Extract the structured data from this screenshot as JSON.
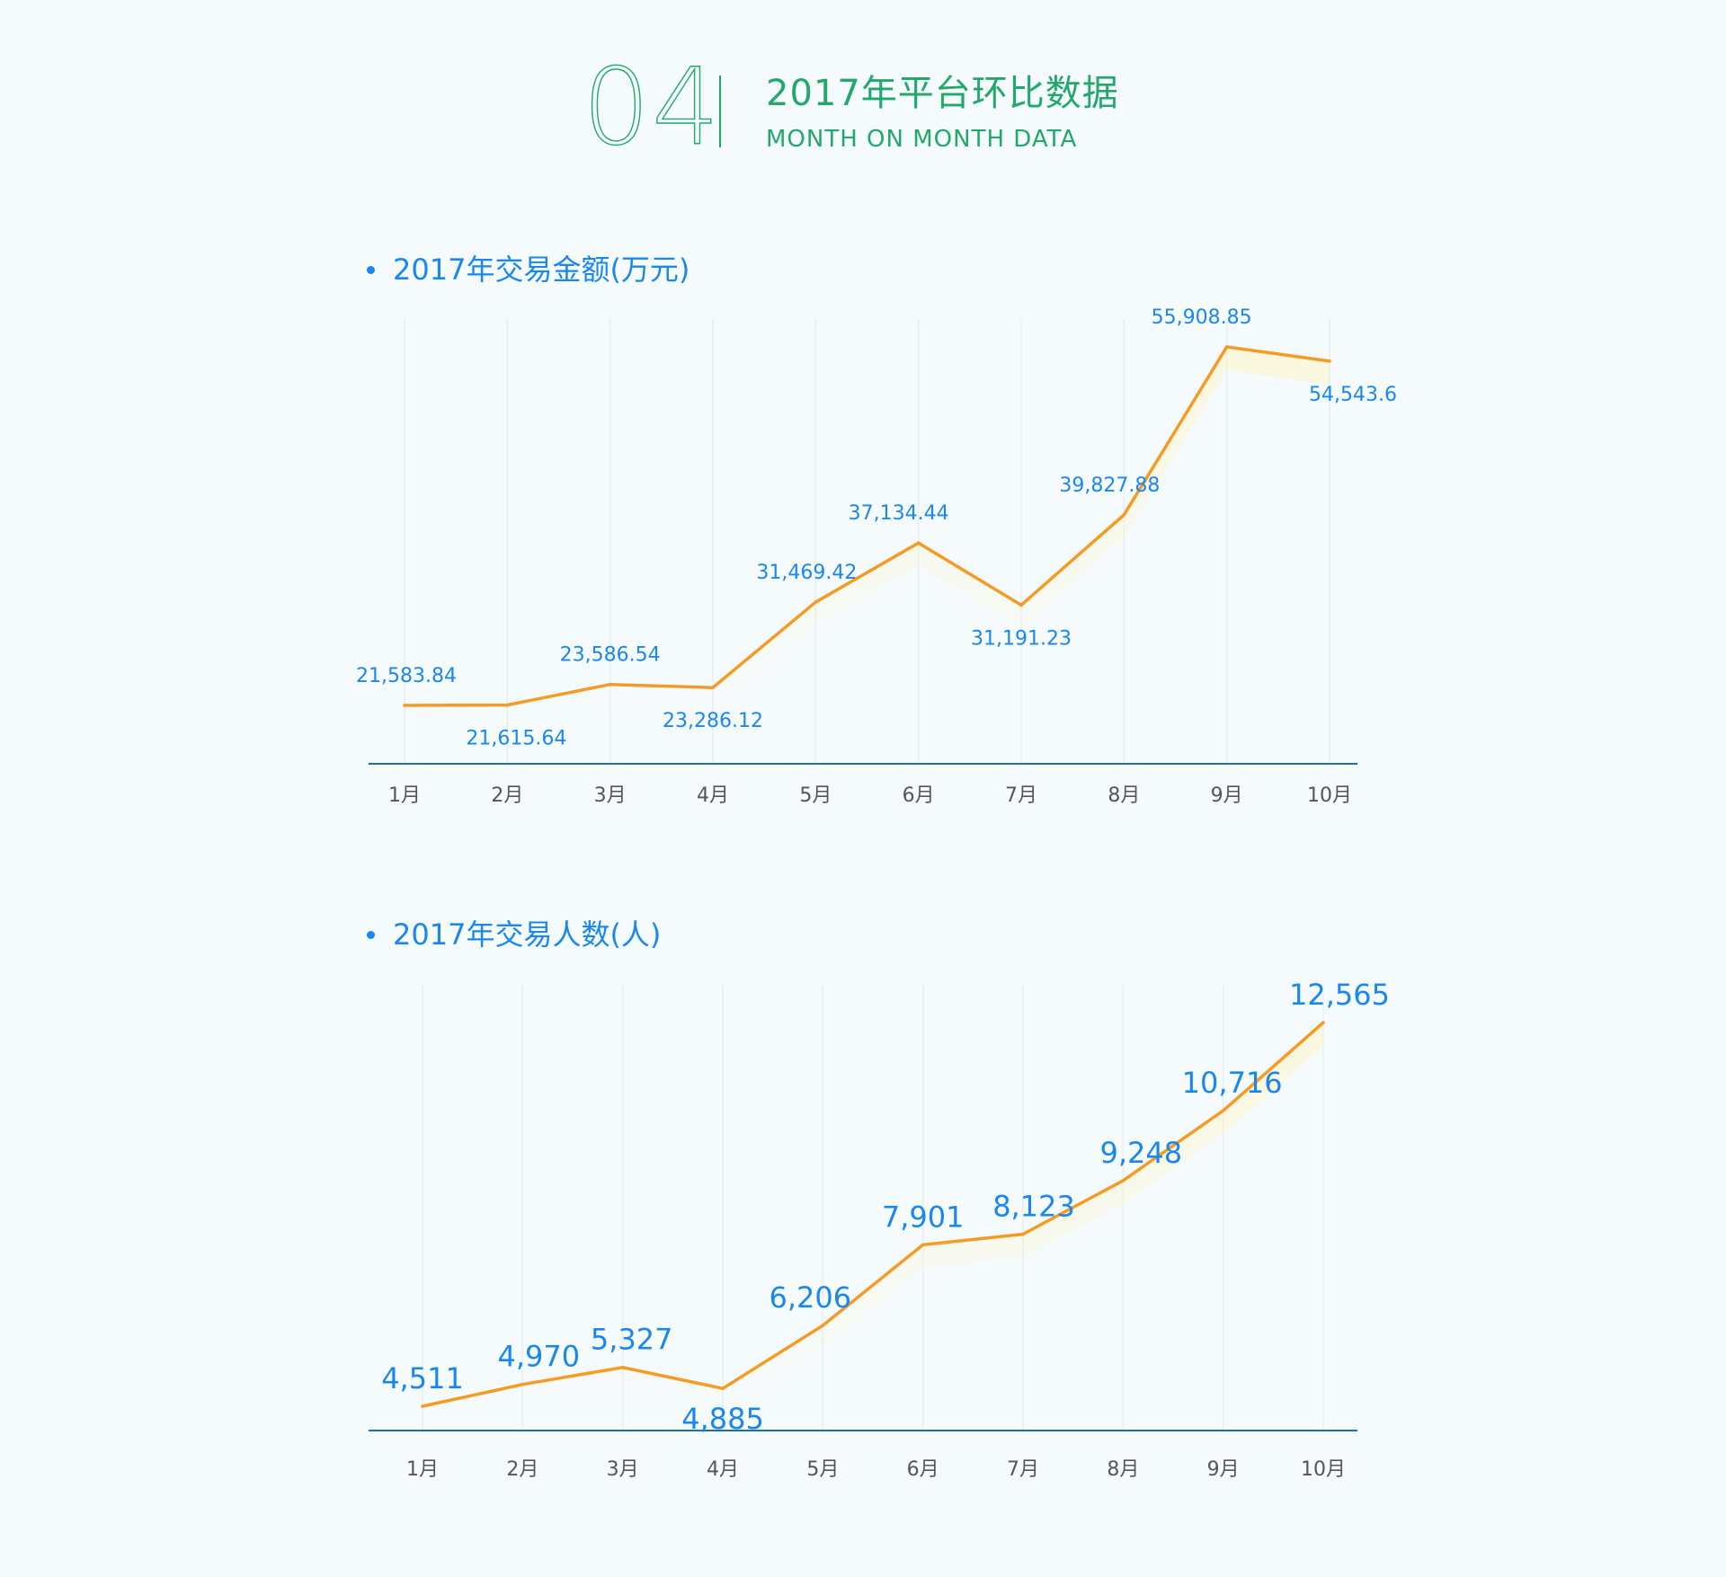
{
  "header": {
    "number": "04",
    "title": "2017年平台环比数据",
    "subtitle": "MONTH ON MONTH DATA"
  },
  "colors": {
    "accent_green": "#22a86b",
    "label_blue": "#1a87f0",
    "line_orange": "#f59a23",
    "axis_blue": "#1f6fa8",
    "tick_gray": "#555555",
    "grid": "#e4eef2"
  },
  "icons": {
    "bullet": "bullet-dot-icon"
  },
  "chart_data": [
    {
      "type": "line",
      "title": "2017年交易金额(万元)",
      "categories": [
        "1月",
        "2月",
        "3月",
        "4月",
        "5月",
        "6月",
        "7月",
        "8月",
        "9月",
        "10月"
      ],
      "values": [
        21583.84,
        21615.64,
        23586.54,
        23286.12,
        31469.42,
        37134.44,
        31191.23,
        39827.88,
        55908.85,
        54543.6
      ],
      "labels": [
        "21,583.84",
        "21,615.64",
        "23,586.54",
        "23,286.12",
        "31,469.42",
        "37,134.44",
        "31,191.23",
        "39,827.88",
        "55,908.85",
        "54,543.6"
      ],
      "label_position": [
        "above",
        "below",
        "above",
        "below",
        "above",
        "above",
        "below",
        "above",
        "above",
        "below"
      ],
      "grid": true,
      "legend": "none"
    },
    {
      "type": "line",
      "title": "2017年交易人数(人)",
      "categories": [
        "1月",
        "2月",
        "3月",
        "4月",
        "5月",
        "6月",
        "7月",
        "8月",
        "9月",
        "10月"
      ],
      "values": [
        4511,
        4970,
        5327,
        4885,
        6206,
        7901,
        8123,
        9248,
        10716,
        12565
      ],
      "labels": [
        "4,511",
        "4,970",
        "5,327",
        "4,885",
        "6,206",
        "7,901",
        "8,123",
        "9,248",
        "10,716",
        "12,565"
      ],
      "label_position": [
        "above",
        "above",
        "above",
        "below",
        "above",
        "above",
        "above",
        "above",
        "above",
        "above"
      ],
      "grid": true,
      "legend": "none"
    }
  ]
}
